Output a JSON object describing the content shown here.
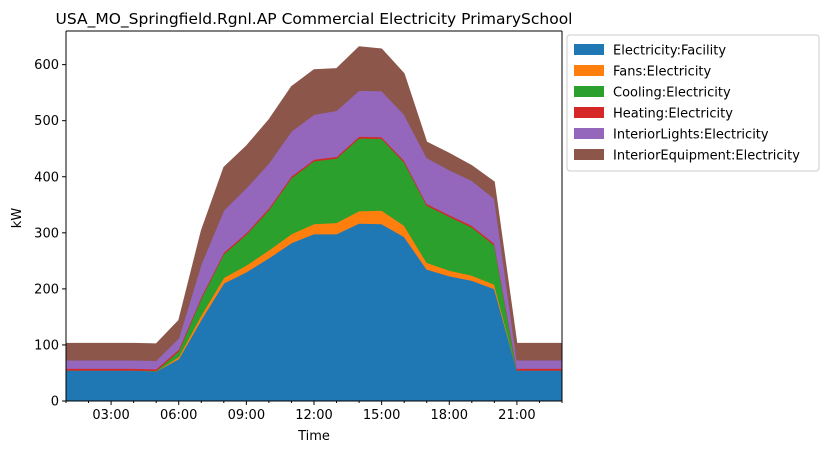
{
  "chart_data": {
    "type": "area",
    "title": "USA_MO_Springfield.Rgnl.AP Commercial Electricity PrimarySchool",
    "xlabel": "Time",
    "ylabel": "kW",
    "ylim": [
      0,
      660
    ],
    "yticks": [
      0,
      100,
      200,
      300,
      400,
      500,
      600
    ],
    "x_hours": [
      1,
      2,
      3,
      4,
      5,
      6,
      7,
      8,
      9,
      10,
      11,
      12,
      13,
      14,
      15,
      16,
      17,
      18,
      19,
      20,
      21,
      22,
      23
    ],
    "xlim_hours": [
      1,
      23
    ],
    "xtick_hours": [
      3,
      6,
      9,
      12,
      15,
      18,
      21
    ],
    "xtick_labels": [
      "03:00",
      "06:00",
      "09:00",
      "12:00",
      "15:00",
      "18:00",
      "21:00"
    ],
    "stacked": true,
    "legend_position": "outside-right",
    "grid": false,
    "series": [
      {
        "name": "Electricity:Facility",
        "color": "#1f77b4",
        "values": [
          55,
          55,
          55,
          55,
          53,
          75,
          145,
          210,
          230,
          255,
          282,
          298,
          298,
          317,
          316,
          293,
          235,
          223,
          215,
          200,
          55,
          55,
          55
        ]
      },
      {
        "name": "Fans:Electricity",
        "color": "#ff7f0e",
        "values": [
          0,
          0,
          0,
          0,
          0,
          4,
          8,
          10,
          12,
          14,
          16,
          18,
          20,
          22,
          24,
          20,
          12,
          10,
          9,
          8,
          0,
          0,
          0
        ]
      },
      {
        "name": "Cooling:Electricity",
        "color": "#2ca02c",
        "values": [
          0,
          0,
          0,
          0,
          1,
          10,
          30,
          42,
          55,
          72,
          100,
          112,
          115,
          130,
          128,
          113,
          102,
          96,
          86,
          70,
          0,
          0,
          0
        ]
      },
      {
        "name": "Heating:Electricity",
        "color": "#d62728",
        "values": [
          3,
          3,
          3,
          3,
          3,
          3,
          3,
          3,
          3,
          3,
          3,
          3,
          3,
          3,
          3,
          3,
          3,
          3,
          3,
          3,
          3,
          3,
          3
        ]
      },
      {
        "name": "InteriorLights:Electricity",
        "color": "#9467bd",
        "values": [
          15,
          15,
          15,
          15,
          15,
          20,
          58,
          75,
          80,
          80,
          80,
          80,
          82,
          82,
          82,
          82,
          82,
          80,
          80,
          80,
          15,
          15,
          15
        ]
      },
      {
        "name": "InteriorEquipment:Electricity",
        "color": "#8c564b",
        "values": [
          30,
          30,
          30,
          30,
          30,
          32,
          60,
          77,
          75,
          78,
          80,
          80,
          75,
          78,
          75,
          73,
          28,
          30,
          27,
          30,
          30,
          30,
          30
        ]
      }
    ]
  }
}
